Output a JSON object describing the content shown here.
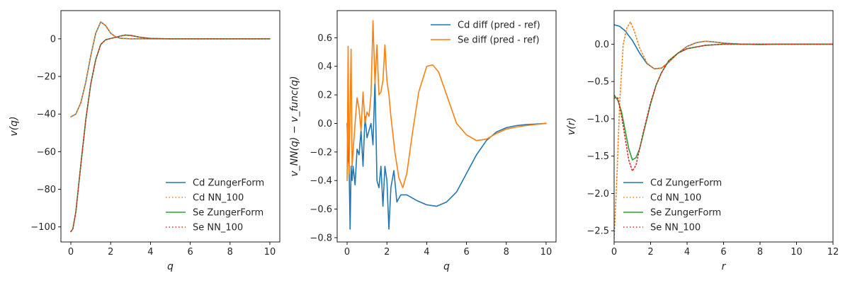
{
  "chart_data": [
    {
      "type": "line",
      "xlabel": "q",
      "ylabel": "v(q)",
      "xlim": [
        -0.5,
        10.5
      ],
      "ylim": [
        -108,
        15
      ],
      "xticks": [
        0,
        2,
        4,
        6,
        8,
        10
      ],
      "yticks": [
        -100,
        -80,
        -60,
        -40,
        -20,
        0
      ],
      "legend_position": "lower-right",
      "series": [
        {
          "name": "Cd ZungerForm",
          "color": "#1f77b4",
          "dash": "solid",
          "x": [
            0,
            0.25,
            0.5,
            0.75,
            1.0,
            1.25,
            1.5,
            1.75,
            2.0,
            2.25,
            2.5,
            3.0,
            3.5,
            4.0,
            5.0,
            6.0,
            8.0,
            10.0
          ],
          "y": [
            -41.5,
            -40,
            -34,
            -23,
            -9,
            3,
            9,
            7,
            3,
            1,
            0.3,
            0,
            0,
            0,
            0,
            0,
            0,
            0
          ]
        },
        {
          "name": "Cd NN_100",
          "color": "#ff7f0e",
          "dash": "dotted",
          "x": [
            0,
            0.25,
            0.5,
            0.75,
            1.0,
            1.25,
            1.5,
            1.75,
            2.0,
            2.25,
            2.5,
            3.0,
            3.5,
            4.0,
            5.0,
            6.0,
            8.0,
            10.0
          ],
          "y": [
            -41.5,
            -40,
            -34,
            -23,
            -9,
            3,
            9,
            7,
            3,
            1,
            0.3,
            0,
            0,
            0,
            0,
            0,
            0,
            0
          ]
        },
        {
          "name": "Se ZungerForm",
          "color": "#2ca02c",
          "dash": "solid",
          "x": [
            0,
            0.1,
            0.25,
            0.5,
            0.75,
            1.0,
            1.25,
            1.5,
            1.75,
            2.0,
            2.25,
            2.5,
            2.75,
            3.0,
            3.5,
            4.0,
            5.0,
            6.0,
            8.0,
            10.0
          ],
          "y": [
            -102.5,
            -101,
            -92,
            -67,
            -43,
            -24,
            -11,
            -3,
            -0.5,
            0.2,
            0.8,
            1.5,
            2,
            1.8,
            0.8,
            0.2,
            0,
            0,
            0,
            0
          ]
        },
        {
          "name": "Se NN_100",
          "color": "#d62728",
          "dash": "dotted",
          "x": [
            0,
            0.1,
            0.25,
            0.5,
            0.75,
            1.0,
            1.25,
            1.5,
            1.75,
            2.0,
            2.25,
            2.5,
            2.75,
            3.0,
            3.5,
            4.0,
            5.0,
            6.0,
            8.0,
            10.0
          ],
          "y": [
            -102.5,
            -101,
            -92,
            -67,
            -43,
            -24,
            -11,
            -3,
            -0.5,
            0.2,
            0.8,
            1.5,
            2,
            1.8,
            0.8,
            0.2,
            0,
            0,
            0,
            0
          ]
        }
      ]
    },
    {
      "type": "line",
      "xlabel": "q",
      "ylabel": "v_NN(q) − v_func(q)",
      "xlim": [
        -0.5,
        10.5
      ],
      "ylim": [
        -0.83,
        0.79
      ],
      "xticks": [
        0,
        2,
        4,
        6,
        8,
        10
      ],
      "yticks": [
        -0.8,
        -0.6,
        -0.4,
        -0.2,
        0.0,
        0.2,
        0.4,
        0.6
      ],
      "legend_position": "upper-right",
      "series": [
        {
          "name": "Cd diff (pred - ref)",
          "color": "#1f77b4",
          "dash": "solid",
          "x": [
            0,
            0.05,
            0.1,
            0.15,
            0.2,
            0.25,
            0.3,
            0.4,
            0.5,
            0.6,
            0.7,
            0.8,
            0.9,
            1.0,
            1.1,
            1.2,
            1.3,
            1.4,
            1.5,
            1.6,
            1.7,
            1.8,
            1.9,
            2.0,
            2.1,
            2.2,
            2.35,
            2.5,
            2.7,
            3.0,
            3.5,
            4.0,
            4.5,
            5.0,
            5.5,
            6.0,
            6.5,
            7.0,
            7.5,
            8.0,
            8.5,
            9.0,
            9.5,
            10.0
          ],
          "y": [
            0.0,
            -0.25,
            -0.3,
            -0.74,
            -0.3,
            -0.4,
            -0.3,
            -0.43,
            -0.18,
            -0.22,
            -0.05,
            -0.3,
            0.05,
            -0.1,
            -0.05,
            0.0,
            -0.15,
            0.3,
            -0.4,
            -0.45,
            -0.3,
            -0.58,
            -0.3,
            -0.4,
            -0.74,
            -0.45,
            -0.33,
            -0.55,
            -0.5,
            -0.5,
            -0.54,
            -0.57,
            -0.58,
            -0.55,
            -0.48,
            -0.35,
            -0.22,
            -0.12,
            -0.06,
            -0.03,
            -0.015,
            -0.008,
            -0.004,
            0.0
          ]
        },
        {
          "name": "Se diff (pred - ref)",
          "color": "#ff7f0e",
          "dash": "solid",
          "x": [
            0,
            0.05,
            0.1,
            0.15,
            0.2,
            0.25,
            0.3,
            0.4,
            0.5,
            0.6,
            0.7,
            0.8,
            0.9,
            1.0,
            1.1,
            1.2,
            1.3,
            1.4,
            1.5,
            1.6,
            1.7,
            1.8,
            1.9,
            2.0,
            2.1,
            2.2,
            2.4,
            2.6,
            2.8,
            3.0,
            3.3,
            3.6,
            4.0,
            4.3,
            4.6,
            5.0,
            5.5,
            6.0,
            6.5,
            7.0,
            7.5,
            8.0,
            8.5,
            9.0,
            9.5,
            10.0
          ],
          "y": [
            -0.4,
            0.54,
            -0.35,
            0.1,
            0.52,
            -0.3,
            -0.2,
            0.0,
            0.18,
            0.1,
            -0.05,
            0.22,
            0.0,
            0.08,
            0.05,
            0.2,
            0.72,
            0.28,
            0.55,
            0.2,
            0.22,
            0.3,
            0.55,
            0.3,
            0.2,
            0.05,
            -0.2,
            -0.38,
            -0.45,
            -0.35,
            -0.05,
            0.22,
            0.4,
            0.41,
            0.36,
            0.2,
            0.0,
            -0.08,
            -0.12,
            -0.11,
            -0.07,
            -0.04,
            -0.025,
            -0.015,
            -0.007,
            0.0
          ]
        }
      ]
    },
    {
      "type": "line",
      "xlabel": "r",
      "ylabel": "v(r)",
      "xlim": [
        0,
        12
      ],
      "ylim": [
        -2.65,
        0.45
      ],
      "xticks": [
        0,
        2,
        4,
        6,
        8,
        10,
        12
      ],
      "yticks": [
        -2.5,
        -2.0,
        -1.5,
        -1.0,
        -0.5,
        0.0
      ],
      "legend_position": "lower-left",
      "series": [
        {
          "name": "Cd ZungerForm",
          "color": "#1f77b4",
          "dash": "solid",
          "x": [
            0,
            0.3,
            0.6,
            1.0,
            1.4,
            1.8,
            2.2,
            2.6,
            3.0,
            3.5,
            4.0,
            4.5,
            5.0,
            5.5,
            6.0,
            7.0,
            8.0,
            9.0,
            10.0,
            12.0
          ],
          "y": [
            0.26,
            0.24,
            0.18,
            0.05,
            -0.12,
            -0.26,
            -0.33,
            -0.32,
            -0.24,
            -0.12,
            -0.03,
            0.02,
            0.04,
            0.03,
            0.015,
            0.0,
            -0.005,
            0,
            0,
            0
          ]
        },
        {
          "name": "Cd NN_100",
          "color": "#ff7f0e",
          "dash": "dotted",
          "x": [
            0,
            0.15,
            0.3,
            0.5,
            0.7,
            0.9,
            1.1,
            1.4,
            1.8,
            2.2,
            2.6,
            3.0,
            3.5,
            4.0,
            4.5,
            5.0,
            5.5,
            6.0,
            7.0,
            8.0,
            9.0,
            10.0,
            12.0
          ],
          "y": [
            -2.6,
            -1.8,
            -0.8,
            0.0,
            0.22,
            0.3,
            0.18,
            -0.05,
            -0.25,
            -0.33,
            -0.32,
            -0.24,
            -0.12,
            -0.03,
            0.02,
            0.04,
            0.03,
            0.015,
            0.0,
            -0.005,
            0,
            0,
            0
          ]
        },
        {
          "name": "Se ZungerForm",
          "color": "#2ca02c",
          "dash": "solid",
          "x": [
            0,
            0.2,
            0.4,
            0.6,
            0.8,
            1.0,
            1.2,
            1.4,
            1.6,
            1.8,
            2.0,
            2.3,
            2.6,
            3.0,
            3.5,
            4.0,
            5.0,
            6.0,
            7.0,
            8.0,
            10.0,
            12.0
          ],
          "y": [
            -0.68,
            -0.75,
            -0.9,
            -1.15,
            -1.4,
            -1.55,
            -1.52,
            -1.4,
            -1.2,
            -1.0,
            -0.8,
            -0.55,
            -0.38,
            -0.22,
            -0.12,
            -0.06,
            -0.015,
            0,
            0,
            0,
            0,
            0
          ]
        },
        {
          "name": "Se NN_100",
          "color": "#d62728",
          "dash": "dotted",
          "x": [
            0,
            0.2,
            0.4,
            0.6,
            0.8,
            1.0,
            1.2,
            1.4,
            1.6,
            1.8,
            2.0,
            2.3,
            2.6,
            3.0,
            3.5,
            4.0,
            5.0,
            6.0,
            7.0,
            8.0,
            10.0,
            12.0
          ],
          "y": [
            -0.72,
            -0.72,
            -0.95,
            -1.25,
            -1.55,
            -1.7,
            -1.62,
            -1.4,
            -1.18,
            -0.98,
            -0.78,
            -0.55,
            -0.38,
            -0.22,
            -0.12,
            -0.06,
            -0.015,
            0,
            0,
            0,
            0,
            0
          ]
        }
      ]
    }
  ]
}
